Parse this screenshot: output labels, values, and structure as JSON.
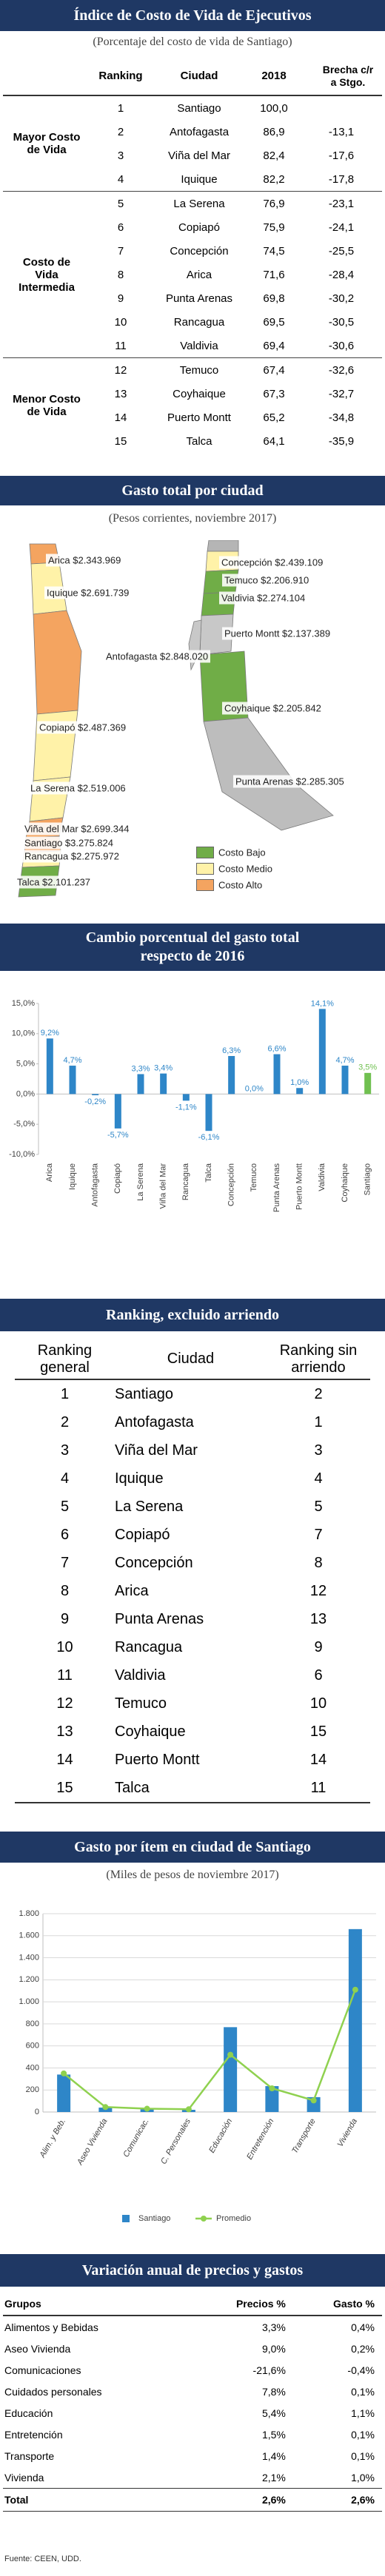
{
  "cost_index": {
    "title": "Índice de Costo de Vida de Ejecutivos",
    "subtitle": "(Porcentaje del costo de vida de Santiago)",
    "columns": [
      "Ranking",
      "Ciudad",
      "2018",
      "Brecha c/r a Stgo."
    ],
    "groups": [
      {
        "label": "Mayor Costo de Vida",
        "rows": [
          [
            "1",
            "Santiago",
            "100,0"
          ],
          [
            "2",
            "Antofagasta",
            "86,9",
            "-13,1"
          ],
          [
            "3",
            "Viña del Mar",
            "82,4",
            "-17,6"
          ],
          [
            "4",
            "Iquique",
            "82,2",
            "-17,8"
          ]
        ]
      },
      {
        "label": "Costo de Vida Intermedia",
        "rows": [
          [
            "5",
            "La Serena",
            "76,9",
            "-23,1"
          ],
          [
            "6",
            "Copiapó",
            "75,9",
            "-24,1"
          ],
          [
            "7",
            "Concepción",
            "74,5",
            "-25,5"
          ],
          [
            "8",
            "Arica",
            "71,6",
            "-28,4"
          ],
          [
            "9",
            "Punta Arenas",
            "69,8",
            "-30,2"
          ],
          [
            "10",
            "Rancagua",
            "69,5",
            "-30,5"
          ],
          [
            "11",
            "Valdivia",
            "69,4",
            "-30,6"
          ]
        ]
      },
      {
        "label": "Menor Costo de Vida",
        "rows": [
          [
            "12",
            "Temuco",
            "67,4",
            "-32,6"
          ],
          [
            "13",
            "Coyhaique",
            "67,3",
            "-32,7"
          ],
          [
            "14",
            "Puerto Montt",
            "65,2",
            "-34,8"
          ],
          [
            "15",
            "Talca",
            "64,1",
            "-35,9"
          ]
        ]
      }
    ]
  },
  "city_spending": {
    "title": "Gasto total por ciudad",
    "subtitle": "(Pesos corrientes, noviembre 2017)",
    "north_labels": [
      "Arica $2.343.969",
      "Iquique $2.691.739",
      "Antofagasta $2.848.020",
      "Copiapó $2.487.369",
      "La Serena $2.519.006",
      "Viña del Mar $2.699.344",
      "Santiago $3.275.824",
      "Rancagua $2.275.972",
      "Talca $2.101.237"
    ],
    "south_labels": [
      "Concepción $2.439.109",
      "Temuco $2.206.910",
      "Valdivia $2.274.104",
      "Puerto Montt $2.137.389",
      "Coyhaique $2.205.842",
      "Punta Arenas $2.285.305"
    ],
    "legend": [
      {
        "label": "Costo Bajo",
        "color": "#70ad47"
      },
      {
        "label": "Costo Medio",
        "color": "#fff2a8"
      },
      {
        "label": "Costo Alto",
        "color": "#f4a460"
      }
    ]
  },
  "chart_data": [
    {
      "type": "bar",
      "title": "Cambio porcentual del gasto total respecto de 2016",
      "categories": [
        "Arica",
        "Iquique",
        "Antofagasta",
        "Copiapó",
        "La Serena",
        "Viña del Mar",
        "Rancagua",
        "Talca",
        "Concepción",
        "Temuco",
        "Punta Arenas",
        "Puerto Montt",
        "Valdivia",
        "Coyhaique",
        "Santiago"
      ],
      "values": [
        9.2,
        4.7,
        -0.2,
        -5.7,
        3.3,
        3.4,
        -1.1,
        -6.1,
        6.3,
        0,
        6.6,
        1.0,
        14.1,
        4.7,
        3.5
      ],
      "value_labels": [
        "9,2%",
        "4,7%",
        "-0,2%",
        "-5,7%",
        "3,3%",
        "3,4%",
        "-1,1%",
        "-6,1%",
        "6,3%",
        "0,0%",
        "6,6%",
        "1,0%",
        "14,1%",
        "4,7%",
        "3,5%"
      ],
      "colors": [
        "#2e86c8",
        "#2e86c8",
        "#2e86c8",
        "#2e86c8",
        "#2e86c8",
        "#2e86c8",
        "#2e86c8",
        "#2e86c8",
        "#2e86c8",
        "#2e86c8",
        "#2e86c8",
        "#2e86c8",
        "#2e86c8",
        "#2e86c8",
        "#70c050"
      ],
      "ylim": [
        -10,
        15
      ],
      "yticks": [
        {
          "value": -10,
          "label": "-10,0%"
        },
        {
          "value": -5,
          "label": "-5,0%"
        },
        {
          "value": 0,
          "label": "0,0%"
        },
        {
          "value": 5,
          "label": "5,0%"
        },
        {
          "value": 10,
          "label": "10,0%"
        },
        {
          "value": 15,
          "label": "15,0%"
        }
      ]
    },
    {
      "type": "bar",
      "title": "Gasto por ítem en ciudad de Santiago",
      "subtitle": "(Miles de pesos de noviembre 2017)",
      "categories": [
        "Alim. y Beb.",
        "Aseo Vivienda",
        "Comunicac.",
        "C. Personales",
        "Educación",
        "Entretención",
        "Transporte",
        "Vivienda"
      ],
      "series": [
        {
          "name": "Santiago",
          "type": "bar",
          "color": "#2e86c8",
          "values": [
            340,
            40,
            25,
            20,
            770,
            235,
            135,
            1660
          ]
        },
        {
          "name": "Promedio",
          "type": "line",
          "color": "#8fd14f",
          "values": [
            350,
            45,
            30,
            25,
            520,
            215,
            105,
            1110
          ]
        }
      ],
      "ylim": [
        0,
        1800
      ],
      "yticks": [
        0,
        200,
        400,
        600,
        800,
        {
          "value": 1000,
          "label": "1.000"
        },
        {
          "value": 1200,
          "label": "1.200"
        },
        {
          "value": 1400,
          "label": "1.400"
        },
        {
          "value": 1600,
          "label": "1.600"
        },
        {
          "value": 1800,
          "label": "1.800"
        }
      ],
      "grid": true
    }
  ],
  "ranking": {
    "title": "Ranking, excluido arriendo",
    "columns": [
      "Ranking general",
      "Ciudad",
      "Ranking sin arriendo"
    ],
    "rows": [
      [
        "1",
        "Santiago",
        "2"
      ],
      [
        "2",
        "Antofagasta",
        "1"
      ],
      [
        "3",
        "Viña del Mar",
        "3"
      ],
      [
        "4",
        "Iquique",
        "4"
      ],
      [
        "5",
        "La Serena",
        "5"
      ],
      [
        "6",
        "Copiapó",
        "7"
      ],
      [
        "7",
        "Concepción",
        "8"
      ],
      [
        "8",
        "Arica",
        "12"
      ],
      [
        "9",
        "Punta Arenas",
        "13"
      ],
      [
        "10",
        "Rancagua",
        "9"
      ],
      [
        "11",
        "Valdivia",
        "6"
      ],
      [
        "12",
        "Temuco",
        "10"
      ],
      [
        "13",
        "Coyhaique",
        "15"
      ],
      [
        "14",
        "Puerto Montt",
        "14"
      ],
      [
        "15",
        "Talca",
        "11"
      ]
    ]
  },
  "variation": {
    "title": "Variación anual de precios y gastos",
    "columns": [
      "Grupos",
      "Precios %",
      "Gasto %"
    ],
    "rows": [
      [
        "Alimentos y Bebidas",
        "3,3%",
        "0,4%"
      ],
      [
        "Aseo Vivienda",
        "9,0%",
        "0,2%"
      ],
      [
        "Comunicaciones",
        "-21,6%",
        "-0,4%"
      ],
      [
        "Cuidados personales",
        "7,8%",
        "0,1%"
      ],
      [
        "Educación",
        "5,4%",
        "1,1%"
      ],
      [
        "Entretención",
        "1,5%",
        "0,1%"
      ],
      [
        "Transporte",
        "1,4%",
        "0,1%"
      ],
      [
        "Vivienda",
        "2,1%",
        "1,0%"
      ]
    ],
    "total": [
      "Total",
      "2,6%",
      "2,6%"
    ]
  },
  "source": "Fuente: CEEN, UDD."
}
